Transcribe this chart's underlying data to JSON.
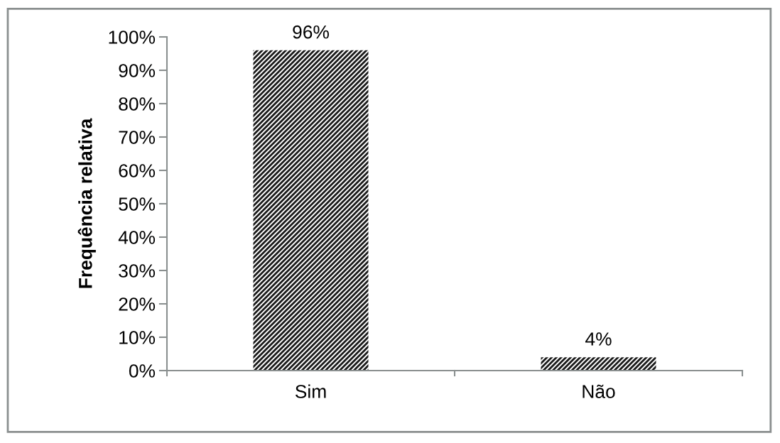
{
  "chart_data": {
    "type": "bar",
    "ylabel": "Frequência relativa",
    "categories": [
      "Sim",
      "Não"
    ],
    "values": [
      96,
      4
    ],
    "value_labels": [
      "96%",
      "4%"
    ],
    "color": "#1a1a1a",
    "ylim": [
      0,
      100
    ],
    "yticks": [
      {
        "value": 0,
        "label": "0%"
      },
      {
        "value": 10,
        "label": "10%"
      },
      {
        "value": 20,
        "label": "20%"
      },
      {
        "value": 30,
        "label": "30%"
      },
      {
        "value": 40,
        "label": "40%"
      },
      {
        "value": 50,
        "label": "50%"
      },
      {
        "value": 60,
        "label": "60%"
      },
      {
        "value": 70,
        "label": "70%"
      },
      {
        "value": 80,
        "label": "80%"
      },
      {
        "value": 90,
        "label": "90%"
      },
      {
        "value": 100,
        "label": "100%"
      }
    ],
    "grid": false,
    "legend": false
  }
}
